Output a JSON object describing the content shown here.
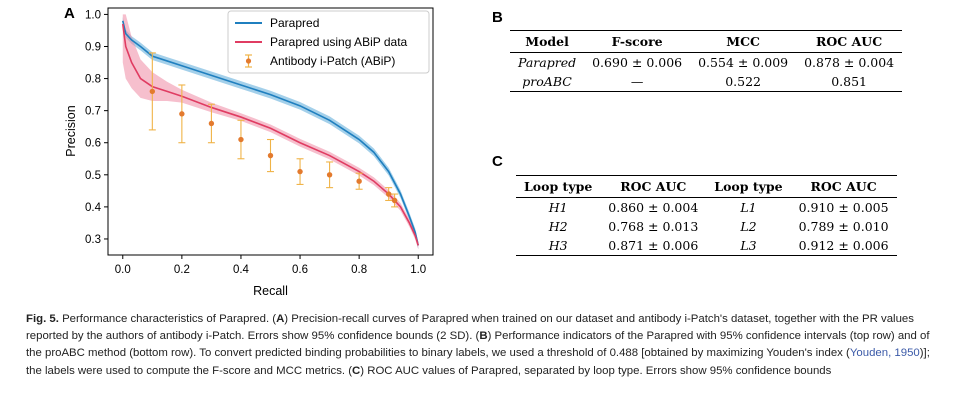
{
  "panels": {
    "a": "A",
    "b": "B",
    "c": "C"
  },
  "chart_data": {
    "type": "line",
    "xlabel": "Recall",
    "ylabel": "Precision",
    "xlim": [
      -0.05,
      1.05
    ],
    "ylim": [
      0.25,
      1.02
    ],
    "xticks": [
      "0.0",
      "0.2",
      "0.4",
      "0.6",
      "0.8",
      "1.0"
    ],
    "yticks": [
      "0.3",
      "0.4",
      "0.5",
      "0.6",
      "0.7",
      "0.8",
      "0.9",
      "1.0"
    ],
    "legend_position": "top-right",
    "series": [
      {
        "name": "Parapred",
        "color": "#1f7fbf",
        "band_color": "#5aaad8",
        "x": [
          0.0,
          0.01,
          0.03,
          0.06,
          0.1,
          0.15,
          0.2,
          0.3,
          0.4,
          0.5,
          0.6,
          0.7,
          0.8,
          0.85,
          0.9,
          0.94,
          0.97,
          0.99,
          1.0
        ],
        "y": [
          0.98,
          0.94,
          0.92,
          0.9,
          0.87,
          0.855,
          0.84,
          0.81,
          0.78,
          0.75,
          0.715,
          0.67,
          0.61,
          0.57,
          0.51,
          0.44,
          0.37,
          0.32,
          0.28
        ],
        "band": 0.012
      },
      {
        "name": "Parapred using ABiP data",
        "color": "#e03c62",
        "band_color": "#ef8aa4",
        "x": [
          0.0,
          0.01,
          0.03,
          0.06,
          0.1,
          0.15,
          0.2,
          0.3,
          0.4,
          0.5,
          0.6,
          0.7,
          0.8,
          0.85,
          0.9,
          0.94,
          0.97,
          0.99,
          1.0
        ],
        "y": [
          0.97,
          0.9,
          0.85,
          0.8,
          0.775,
          0.76,
          0.745,
          0.71,
          0.68,
          0.645,
          0.6,
          0.56,
          0.51,
          0.48,
          0.44,
          0.4,
          0.35,
          0.31,
          0.28
        ],
        "band": [
          0.12,
          0.1,
          0.08,
          0.06,
          0.045,
          0.03,
          0.02,
          0.015,
          0.012,
          0.012,
          0.012,
          0.012,
          0.012,
          0.012,
          0.012,
          0.012,
          0.012,
          0.012,
          0.012
        ]
      }
    ],
    "points": {
      "name": "Antibody i-Patch (ABiP)",
      "color": "#e37a2e",
      "err_color": "#f0b347",
      "x": [
        0.1,
        0.2,
        0.3,
        0.4,
        0.5,
        0.6,
        0.7,
        0.8,
        0.9,
        0.92
      ],
      "y": [
        0.76,
        0.69,
        0.66,
        0.61,
        0.56,
        0.51,
        0.5,
        0.48,
        0.44,
        0.42
      ],
      "err": [
        0.12,
        0.09,
        0.06,
        0.06,
        0.05,
        0.04,
        0.04,
        0.025,
        0.02,
        0.02
      ]
    }
  },
  "table_b": {
    "headers": [
      "Model",
      "F-score",
      "MCC",
      "ROC AUC"
    ],
    "rows": [
      [
        "Parapred",
        "0.690 ± 0.006",
        "0.554 ± 0.009",
        "0.878 ± 0.004"
      ],
      [
        "proABC",
        "—",
        "0.522",
        "0.851"
      ]
    ]
  },
  "table_c": {
    "headers": [
      "Loop type",
      "ROC AUC",
      "Loop type",
      "ROC AUC"
    ],
    "rows": [
      [
        "H1",
        "0.860 ± 0.004",
        "L1",
        "0.910 ± 0.005"
      ],
      [
        "H2",
        "0.768 ± 0.013",
        "L2",
        "0.789 ± 0.010"
      ],
      [
        "H3",
        "0.871 ± 0.006",
        "L3",
        "0.912 ± 0.006"
      ]
    ]
  },
  "caption": {
    "label": "Fig. 5.",
    "part1": " Performance characteristics of Parapred. (",
    "a": "A",
    "part2": ") Precision-recall curves of Parapred when trained on our dataset and antibody i-Patch's dataset, together with the PR values reported by the authors of antibody i-Patch. Errors show 95% confidence bounds (2 SD). (",
    "b": "B",
    "part3": ") Performance indicators of the Parapred with 95% confidence intervals (top row) and of the proABC method (bottom row). To convert predicted binding probabilities to binary labels, we used a threshold of 0.488 [obtained by maximizing Youden's index (",
    "ref": "Youden, 1950",
    "part4": ")]; the labels were used to compute the F-score and MCC metrics. (",
    "c": "C",
    "part5": ") ROC AUC values of Parapred, separated by loop type. Errors show 95% confidence bounds"
  }
}
